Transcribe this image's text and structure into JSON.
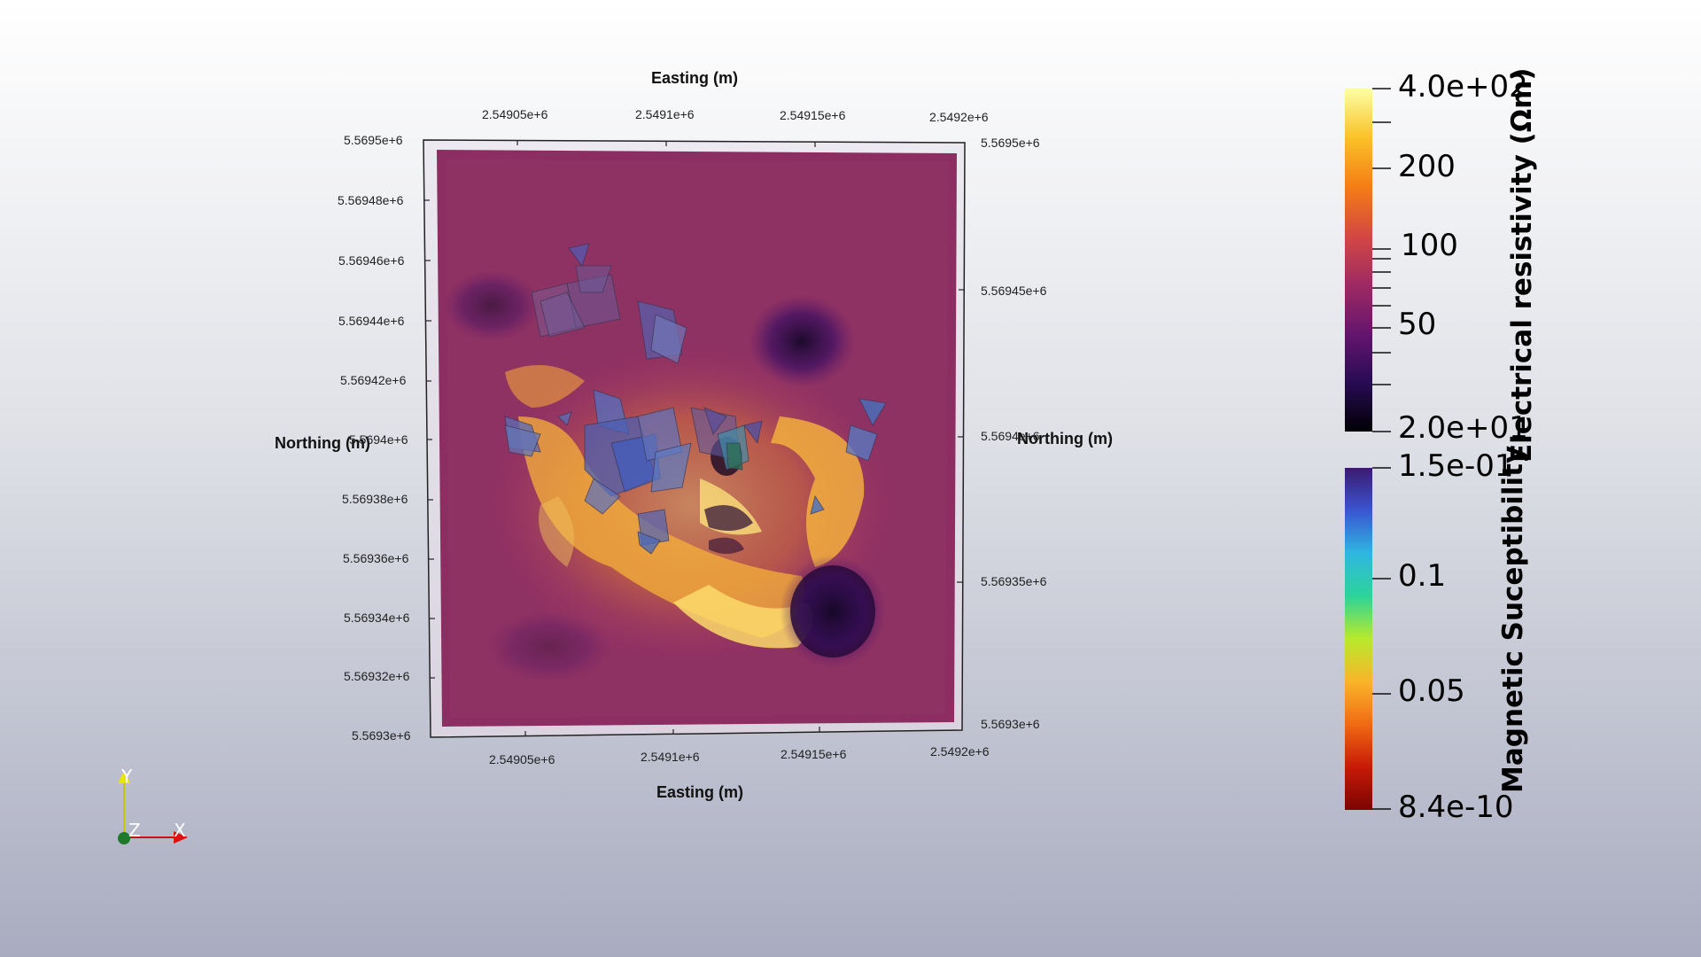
{
  "top_axis": {
    "title": "Easting (m)",
    "ticks": [
      "2.54905e+6",
      "2.5491e+6",
      "2.54915e+6",
      "2.5492e+6"
    ]
  },
  "bottom_axis": {
    "title": "Easting (m)",
    "ticks": [
      "2.54905e+6",
      "2.5491e+6",
      "2.54915e+6",
      "2.5492e+6"
    ]
  },
  "left_axis": {
    "title": "Northing (m)",
    "ticks": [
      "5.5695e+6",
      "5.56948e+6",
      "5.56946e+6",
      "5.56944e+6",
      "5.56942e+6",
      "5.5694e+6",
      "5.56938e+6",
      "5.56936e+6",
      "5.56934e+6",
      "5.56932e+6",
      "5.5693e+6"
    ]
  },
  "right_axis": {
    "title": "Northing (m)",
    "ticks": [
      "5.5695e+6",
      "5.56945e+6",
      "5.5694e+6",
      "5.56935e+6",
      "5.5693e+6"
    ]
  },
  "resistivity_bar": {
    "title": "Electrical resistivity (Ωm)",
    "scale": "log",
    "ticks": [
      "4.0e+02",
      "200",
      "100",
      "50",
      "2.0e+01"
    ],
    "colors": [
      "#fcffa4",
      "#fac228",
      "#f57d15",
      "#d44842",
      "#9f2a63",
      "#65156e",
      "#280b53",
      "#000004"
    ]
  },
  "susceptibility_bar": {
    "title": "Magnetic Suceptibility",
    "ticks": [
      "1.5e-01",
      "0.1",
      "0.05",
      "8.4e-10"
    ],
    "colors": [
      "#3b1a6e",
      "#3a55d2",
      "#2fb7e0",
      "#2cd49a",
      "#b8ea2c",
      "#f9b52a",
      "#f16a13",
      "#c81a07",
      "#7a0403"
    ]
  },
  "orientation_axes": {
    "x": "X",
    "y": "Y",
    "z": "Z"
  }
}
